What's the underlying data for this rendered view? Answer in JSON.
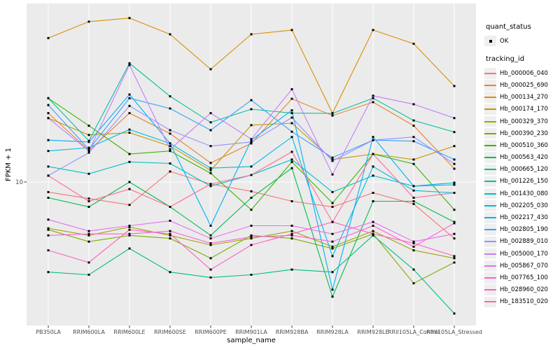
{
  "figure": {
    "x_axis_title": "sample_name",
    "y_axis_title": "FPKM + 1",
    "y_tick_label": "10",
    "panel_bg": "#ebebeb",
    "grid_color": "#ffffff",
    "tick_text_color": "#4d4d4d",
    "point_color": "#000000"
  },
  "legend": {
    "quant_status_title": "quant_status",
    "quant_status_items": [
      {
        "label": "OK",
        "marker": "point"
      }
    ],
    "tracking_id_title": "tracking_id"
  },
  "chart_data": {
    "type": "line",
    "title": "",
    "xlabel": "sample_name",
    "ylabel": "FPKM + 1",
    "y_scale": "log10",
    "y_breaks": [
      10
    ],
    "ylim_px_note": "log scale, value 10 at gridline; approx range 1.2 - 140",
    "grid": "vertical lines per category + horizontal line at y=10",
    "legend_position": "right",
    "categories": [
      "PB350LA",
      "RRIM600LA",
      "RRIM600LE",
      "RRIM600SE",
      "RRIM600PE",
      "RRIM901LA",
      "RRIM928BA",
      "RRIM928LA",
      "RRIM928LE",
      "RRII105LA_Control",
      "RRII105LA_Stressed"
    ],
    "series": [
      {
        "name": "Hb_000006_040",
        "color": "#F8766D",
        "values": [
          8.6,
          7.8,
          7.1,
          11.7,
          9.7,
          8.7,
          7.5,
          6.9,
          8.5,
          7.2,
          4.3
        ]
      },
      {
        "name": "Hb_000025_690",
        "color": "#EA8331",
        "values": [
          28,
          16,
          28,
          20.6,
          13.3,
          17.8,
          34.7,
          27,
          33,
          23.2,
          12.2
        ]
      },
      {
        "name": "Hb_000134_270",
        "color": "#D89000",
        "values": [
          86,
          110,
          116,
          91,
          54,
          91,
          97,
          28,
          97,
          79,
          42
        ]
      },
      {
        "name": "Hb_000174_170",
        "color": "#C09B00",
        "values": [
          26,
          20.2,
          20.9,
          17.1,
          11.9,
          23.4,
          24.1,
          14,
          15.2,
          14,
          17.1
        ]
      },
      {
        "name": "Hb_000329_370",
        "color": "#A3A500",
        "values": [
          5.0,
          4.5,
          5.1,
          4.5,
          3.9,
          4.3,
          4.8,
          3.8,
          4.8,
          3.6,
          3.2
        ]
      },
      {
        "name": "Hb_000390_230",
        "color": "#7CAE00",
        "values": [
          4.9,
          4.1,
          4.5,
          4.3,
          3.2,
          4.5,
          4.3,
          3.7,
          4.6,
          2.2,
          3.0
        ]
      },
      {
        "name": "Hb_000510_360",
        "color": "#39B600",
        "values": [
          35,
          23.2,
          15.2,
          15.9,
          11.4,
          6.6,
          13.5,
          7.3,
          15.2,
          13.1,
          6.6
        ]
      },
      {
        "name": "Hb_000563_420",
        "color": "#00BB4E",
        "values": [
          7.9,
          6.9,
          10,
          6.9,
          4.5,
          7.9,
          12.3,
          1.8,
          7.5,
          7.5,
          5.5
        ]
      },
      {
        "name": "Hb_000665_120",
        "color": "#00BF7D",
        "values": [
          2.6,
          2.5,
          3.7,
          2.6,
          2.4,
          2.5,
          2.7,
          2.6,
          4.5,
          2.7,
          1.4
        ]
      },
      {
        "name": "Hb_001226_150",
        "color": "#00C1A3",
        "values": [
          35,
          18.5,
          59,
          36,
          24.4,
          29.7,
          28,
          27.9,
          35,
          25.1,
          21.1
        ]
      },
      {
        "name": "Hb_001430_080",
        "color": "#00BFC4",
        "values": [
          12.6,
          11.3,
          13.5,
          13.2,
          9.4,
          11.1,
          14,
          8.6,
          11,
          9.4,
          9.6
        ]
      },
      {
        "name": "Hb_002205_030",
        "color": "#00BAE0",
        "values": [
          15.9,
          16.7,
          21.9,
          17.8,
          12.3,
          12.6,
          19.6,
          3.3,
          12.6,
          8.8,
          8.5
        ]
      },
      {
        "name": "Hb_002217_430",
        "color": "#00B0F6",
        "values": [
          18.7,
          18.2,
          37,
          17.8,
          5.2,
          18.7,
          29.2,
          2.0,
          19.6,
          9.4,
          9.9
        ]
      },
      {
        "name": "Hb_002805_190",
        "color": "#35A2FF",
        "values": [
          31.6,
          16.3,
          35,
          30,
          21.7,
          34,
          21.2,
          14.4,
          18.7,
          18.4,
          14
        ]
      },
      {
        "name": "Hb_002889_010",
        "color": "#9590FF",
        "values": [
          11,
          15.5,
          31.2,
          21.7,
          17.1,
          18.2,
          26.2,
          13.7,
          18.7,
          19.6,
          13.1
        ]
      },
      {
        "name": "Hb_005000_170",
        "color": "#C77CFF",
        "values": [
          26,
          15.9,
          57.5,
          16.3,
          28,
          19,
          40,
          11.2,
          36.3,
          32,
          26
        ]
      },
      {
        "name": "Hb_005867_070",
        "color": "#E76BF3",
        "values": [
          5.7,
          4.8,
          5.2,
          5.6,
          4.3,
          5.2,
          5.2,
          4.6,
          5.5,
          4.1,
          4.6
        ]
      },
      {
        "name": "Hb_007765_100",
        "color": "#FA62DB",
        "values": [
          4.5,
          4.6,
          4.6,
          4.8,
          4.0,
          4.4,
          4.5,
          4.1,
          5.2,
          3.8,
          5.4
        ]
      },
      {
        "name": "Hb_028960_020",
        "color": "#FF62BC",
        "values": [
          3.6,
          3.0,
          4.9,
          4.6,
          2.7,
          3.9,
          4.6,
          5.5,
          4.6,
          4.0,
          3.3
        ]
      },
      {
        "name": "Hb_183510_020",
        "color": "#FF6A98",
        "values": [
          11,
          7.5,
          9.0,
          6.9,
          9.7,
          11.1,
          15.7,
          5.5,
          15.2,
          7.9,
          8.5
        ]
      }
    ]
  }
}
